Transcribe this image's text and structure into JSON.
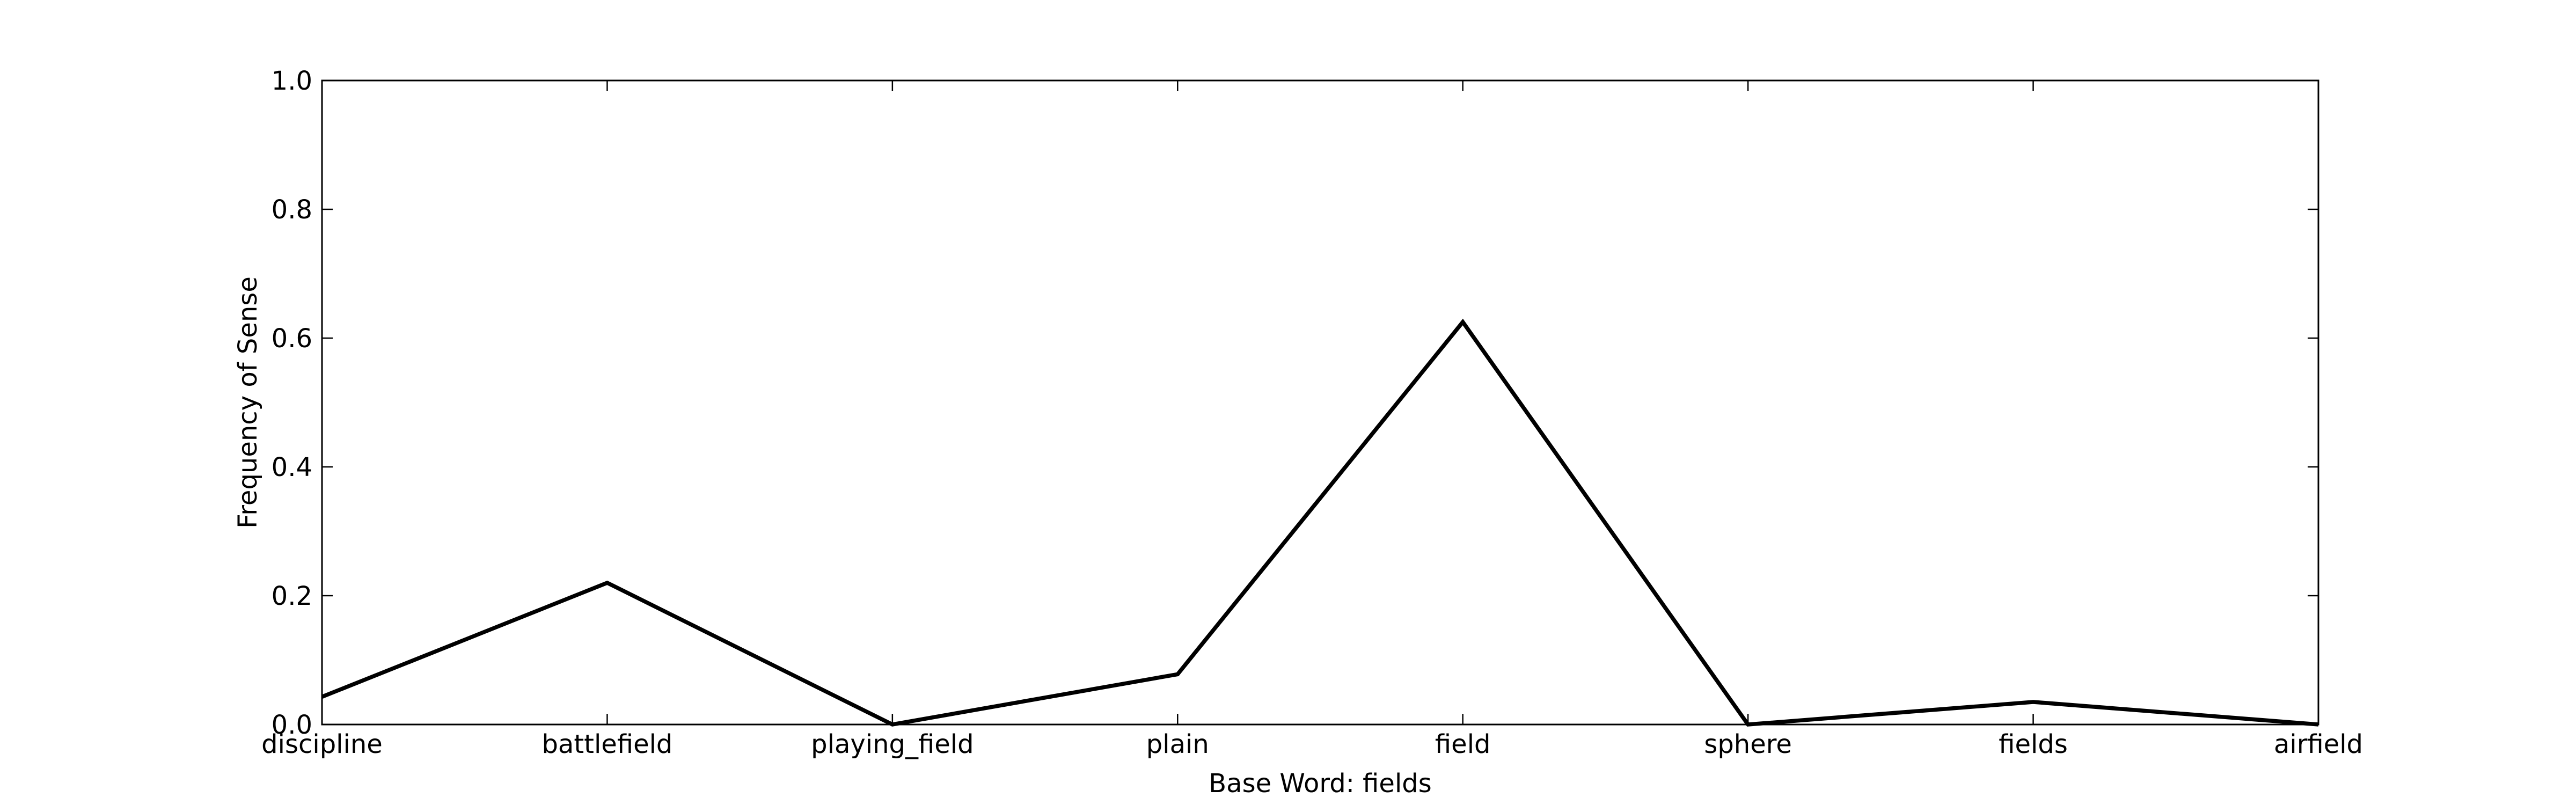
{
  "chart_data": {
    "type": "line",
    "title": "",
    "xlabel": "Base Word: fields",
    "ylabel": "Frequency of Sense",
    "categories": [
      "discipline",
      "battlefield",
      "playing_field",
      "plain",
      "field",
      "sphere",
      "fields",
      "airfield"
    ],
    "series": [
      {
        "values": [
          0.043,
          0.22,
          0.0,
          0.078,
          0.625,
          0.0,
          0.035,
          0.0
        ]
      }
    ],
    "ylim": [
      0.0,
      1.0
    ],
    "yticks": [
      "0.0",
      "0.2",
      "0.4",
      "0.6",
      "0.8",
      "1.0"
    ],
    "grid": false,
    "line_color": "#000000"
  }
}
